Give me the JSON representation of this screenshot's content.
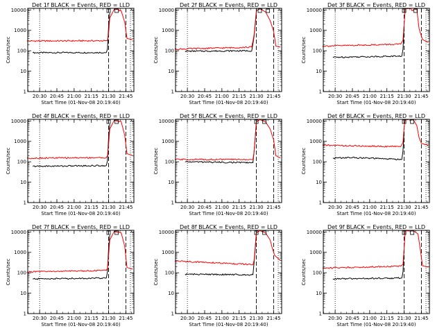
{
  "colors": {
    "events": "#000000",
    "lld": "#ff0000",
    "axes": "#000000",
    "background": "#ffffff"
  },
  "chart_data": [
    {
      "type": "line",
      "title": "Det 1f BLACK = Events, RED = LLD",
      "xlabel": "Start Time (01-Nov-08 20:19:40)",
      "ylabel": "Counts/sec",
      "yscale": "log",
      "ylim": [
        1,
        12000
      ],
      "xlim": [
        "20:19:40",
        "21:52:00"
      ],
      "xtick_labels": [
        "20:30",
        "20:45",
        "21:00",
        "21:15",
        "21:30",
        "21:45"
      ],
      "ytick_labels": [
        "1",
        "10",
        "100",
        "1000",
        "10000"
      ],
      "markers": {
        "dotted": [
          "20:30",
          "21:49"
        ],
        "dashed": [
          "21:30",
          "21:45"
        ]
      },
      "flags": [
        "21:30",
        "21:37"
      ],
      "series": [
        {
          "color": "red",
          "x": [
            "20:19",
            "21:28",
            "21:29",
            "21:30",
            "21:31",
            "21:35",
            "21:41",
            "21:44",
            "21:46",
            "21:51"
          ],
          "values": [
            300,
            310,
            330,
            700,
            4000,
            11000,
            9000,
            2500,
            400,
            350
          ]
        },
        {
          "color": "black",
          "x": [
            "20:24",
            "21:28",
            "21:29",
            "21:30",
            "21:31"
          ],
          "values": [
            80,
            82,
            120,
            1500,
            7000
          ]
        }
      ]
    },
    {
      "type": "line",
      "title": "Det 2f BLACK = Events, RED = LLD",
      "xlabel": "Start Time (01-Nov-08 20:19:40)",
      "ylabel": "Counts/sec",
      "yscale": "log",
      "ylim": [
        1,
        12000
      ],
      "xlim": [
        "20:19:40",
        "21:52:00"
      ],
      "xtick_labels": [
        "20:30",
        "20:45",
        "21:00",
        "21:15",
        "21:30",
        "21:45"
      ],
      "ytick_labels": [
        "1",
        "10",
        "100",
        "1000",
        "10000"
      ],
      "markers": {
        "dotted": [
          "20:30",
          "21:49"
        ],
        "dashed": [
          "21:30",
          "21:45"
        ]
      },
      "flags": [
        "21:33",
        "21:40"
      ],
      "series": [
        {
          "color": "red",
          "x": [
            "20:19",
            "21:26",
            "21:28",
            "21:30",
            "21:33",
            "21:38",
            "21:42",
            "21:45",
            "21:47",
            "21:51"
          ],
          "values": [
            120,
            150,
            600,
            9000,
            11500,
            8000,
            3000,
            900,
            170,
            150
          ]
        },
        {
          "color": "black",
          "x": [
            "20:28",
            "21:26",
            "21:28",
            "21:30"
          ],
          "values": [
            95,
            100,
            500,
            8000
          ]
        }
      ]
    },
    {
      "type": "line",
      "title": "Det 3f BLACK = Events, RED = LLD",
      "xlabel": "Start Time (01-Nov-08 20:19:40)",
      "ylabel": "Counts/sec",
      "yscale": "log",
      "ylim": [
        1,
        12000
      ],
      "xlim": [
        "20:19:40",
        "21:52:00"
      ],
      "xtick_labels": [
        "20:30",
        "20:45",
        "21:00",
        "21:15",
        "21:30",
        "21:45"
      ],
      "ytick_labels": [
        "1",
        "10",
        "100",
        "1000",
        "10000"
      ],
      "markers": {
        "dotted": [
          "20:30",
          "21:49"
        ],
        "dashed": [
          "21:30",
          "21:45"
        ]
      },
      "flags": [
        "21:30",
        "21:40"
      ],
      "series": [
        {
          "color": "red",
          "x": [
            "20:19",
            "21:27",
            "21:29",
            "21:30",
            "21:31",
            "21:36",
            "21:37",
            "21:39",
            "21:41",
            "21:43",
            "21:46",
            "21:51"
          ],
          "values": [
            170,
            210,
            330,
            2000,
            11500,
            11500,
            9000,
            11000,
            11000,
            1200,
            350,
            260
          ]
        },
        {
          "color": "black",
          "x": [
            "20:28",
            "21:28",
            "21:29",
            "21:30"
          ],
          "values": [
            48,
            55,
            120,
            1600
          ]
        }
      ]
    },
    {
      "type": "line",
      "title": "Det 4f BLACK = Events, RED = LLD",
      "xlabel": "Start Time (01-Nov-08 20:19:40)",
      "ylabel": "Counts/sec",
      "yscale": "log",
      "ylim": [
        1,
        12000
      ],
      "xlim": [
        "20:19:40",
        "21:52:00"
      ],
      "xtick_labels": [
        "20:30",
        "20:45",
        "21:00",
        "21:15",
        "21:30",
        "21:45"
      ],
      "ytick_labels": [
        "1",
        "10",
        "100",
        "1000",
        "10000"
      ],
      "markers": {
        "dotted": [
          "20:30",
          "21:49"
        ],
        "dashed": [
          "21:30",
          "21:45"
        ]
      },
      "flags": [
        "21:30",
        "21:37"
      ],
      "series": [
        {
          "color": "red",
          "x": [
            "20:19",
            "21:28",
            "21:29",
            "21:30",
            "21:31",
            "21:35",
            "21:41",
            "21:44",
            "21:46",
            "21:51"
          ],
          "values": [
            150,
            160,
            200,
            700,
            4000,
            11000,
            9000,
            2000,
            250,
            200
          ]
        },
        {
          "color": "black",
          "x": [
            "20:24",
            "21:28",
            "21:29",
            "21:30",
            "21:31"
          ],
          "values": [
            60,
            65,
            110,
            1500,
            7000
          ]
        }
      ]
    },
    {
      "type": "line",
      "title": "Det 5f BLACK = Events, RED = LLD",
      "xlabel": "Start Time (01-Nov-08 20:19:40)",
      "ylabel": "Counts/sec",
      "yscale": "log",
      "ylim": [
        1,
        12000
      ],
      "xlim": [
        "20:19:40",
        "21:52:00"
      ],
      "xtick_labels": [
        "20:30",
        "20:45",
        "21:00",
        "21:15",
        "21:30",
        "21:45"
      ],
      "ytick_labels": [
        "1",
        "10",
        "100",
        "1000",
        "10000"
      ],
      "markers": {
        "dotted": [
          "20:30",
          "21:49"
        ],
        "dashed": [
          "21:30",
          "21:45"
        ]
      },
      "flags": [
        "21:30",
        "21:37"
      ],
      "series": [
        {
          "color": "red",
          "x": [
            "20:19",
            "21:27",
            "21:28",
            "21:30",
            "21:33",
            "21:38",
            "21:42",
            "21:45",
            "21:47",
            "21:51"
          ],
          "values": [
            130,
            130,
            300,
            9000,
            11500,
            9000,
            4000,
            1200,
            200,
            150
          ]
        },
        {
          "color": "black",
          "x": [
            "20:28",
            "21:27",
            "21:28",
            "21:30"
          ],
          "values": [
            100,
            90,
            300,
            8000
          ]
        }
      ]
    },
    {
      "type": "line",
      "title": "Det 6f BLACK = Events, RED = LLD",
      "xlabel": "Start Time (01-Nov-08 20:19:40)",
      "ylabel": "Counts/sec",
      "yscale": "log",
      "ylim": [
        1,
        12000
      ],
      "xlim": [
        "20:19:40",
        "21:52:00"
      ],
      "xtick_labels": [
        "20:30",
        "20:45",
        "21:00",
        "21:15",
        "21:30",
        "21:45"
      ],
      "ytick_labels": [
        "1",
        "10",
        "100",
        "1000",
        "10000"
      ],
      "markers": {
        "dotted": [
          "20:30",
          "21:49"
        ],
        "dashed": [
          "21:30",
          "21:45"
        ]
      },
      "flags": [
        "21:30",
        "21:37"
      ],
      "series": [
        {
          "color": "red",
          "x": [
            "20:19",
            "20:45",
            "21:27",
            "21:29",
            "21:30",
            "21:31",
            "21:38",
            "21:41",
            "21:43",
            "21:45",
            "21:51"
          ],
          "values": [
            650,
            600,
            550,
            900,
            5000,
            11500,
            11500,
            6000,
            1500,
            800,
            650
          ]
        },
        {
          "color": "black",
          "x": [
            "20:28",
            "20:45",
            "21:28",
            "21:29",
            "21:30"
          ],
          "values": [
            150,
            160,
            130,
            350,
            3000
          ]
        }
      ]
    },
    {
      "type": "line",
      "title": "Det 7f BLACK = Events, RED = LLD",
      "xlabel": "Start Time (01-Nov-08 20:19:40)",
      "ylabel": "Counts/sec",
      "yscale": "log",
      "ylim": [
        1,
        12000
      ],
      "xlim": [
        "20:19:40",
        "21:52:00"
      ],
      "xtick_labels": [
        "20:30",
        "20:45",
        "21:00",
        "21:15",
        "21:30",
        "21:45"
      ],
      "ytick_labels": [
        "1",
        "10",
        "100",
        "1000",
        "10000"
      ],
      "markers": {
        "dotted": [
          "20:30",
          "21:49"
        ],
        "dashed": [
          "21:30",
          "21:45"
        ]
      },
      "flags": [
        "21:30",
        "21:37"
      ],
      "series": [
        {
          "color": "red",
          "x": [
            "20:19",
            "21:28",
            "21:29",
            "21:30",
            "21:31",
            "21:35",
            "21:41",
            "21:44",
            "21:46",
            "21:51"
          ],
          "values": [
            110,
            130,
            170,
            700,
            4000,
            11000,
            9000,
            2000,
            180,
            150
          ]
        },
        {
          "color": "black",
          "x": [
            "20:24",
            "21:28",
            "21:29",
            "21:30",
            "21:31"
          ],
          "values": [
            50,
            55,
            110,
            1500,
            7000
          ]
        }
      ]
    },
    {
      "type": "line",
      "title": "Det 8f BLACK = Events, RED = LLD",
      "xlabel": "Start Time (01-Nov-08 20:19:40)",
      "ylabel": "Counts/sec",
      "yscale": "log",
      "ylim": [
        1,
        12000
      ],
      "xlim": [
        "20:19:40",
        "21:52:00"
      ],
      "xtick_labels": [
        "20:30",
        "20:45",
        "21:00",
        "21:15",
        "21:30",
        "21:45"
      ],
      "ytick_labels": [
        "1",
        "10",
        "100",
        "1000",
        "10000"
      ],
      "markers": {
        "dotted": [
          "20:30",
          "21:49"
        ],
        "dashed": [
          "21:30",
          "21:45"
        ]
      },
      "flags": [
        "21:30",
        "21:37"
      ],
      "series": [
        {
          "color": "red",
          "x": [
            "20:19",
            "21:27",
            "21:28",
            "21:30",
            "21:33",
            "21:38",
            "21:42",
            "21:44",
            "21:46",
            "21:51"
          ],
          "values": [
            380,
            250,
            400,
            9000,
            11500,
            9000,
            4000,
            1500,
            700,
            400
          ]
        },
        {
          "color": "black",
          "x": [
            "20:28",
            "21:27",
            "21:28",
            "21:30"
          ],
          "values": [
            85,
            80,
            300,
            8000
          ]
        }
      ]
    },
    {
      "type": "line",
      "title": "Det 9f BLACK = Events, RED = LLD",
      "xlabel": "Start Time (01-Nov-08 20:19:40)",
      "ylabel": "Counts/sec",
      "yscale": "log",
      "ylim": [
        1,
        12000
      ],
      "xlim": [
        "20:19:40",
        "21:52:00"
      ],
      "xtick_labels": [
        "20:30",
        "20:45",
        "21:00",
        "21:15",
        "21:30",
        "21:45"
      ],
      "ytick_labels": [
        "1",
        "10",
        "100",
        "1000",
        "10000"
      ],
      "markers": {
        "dotted": [
          "20:30",
          "21:49"
        ],
        "dashed": [
          "21:30",
          "21:45"
        ]
      },
      "flags": [
        "21:30",
        "21:37"
      ],
      "series": [
        {
          "color": "red",
          "x": [
            "20:19",
            "21:27",
            "21:29",
            "21:30",
            "21:31",
            "21:38",
            "21:42",
            "21:44",
            "21:46",
            "21:51"
          ],
          "values": [
            170,
            210,
            260,
            1500,
            11500,
            11500,
            8000,
            1500,
            220,
            190
          ]
        },
        {
          "color": "black",
          "x": [
            "20:28",
            "21:28",
            "21:29",
            "21:30"
          ],
          "values": [
            50,
            55,
            110,
            1500
          ]
        }
      ]
    }
  ]
}
